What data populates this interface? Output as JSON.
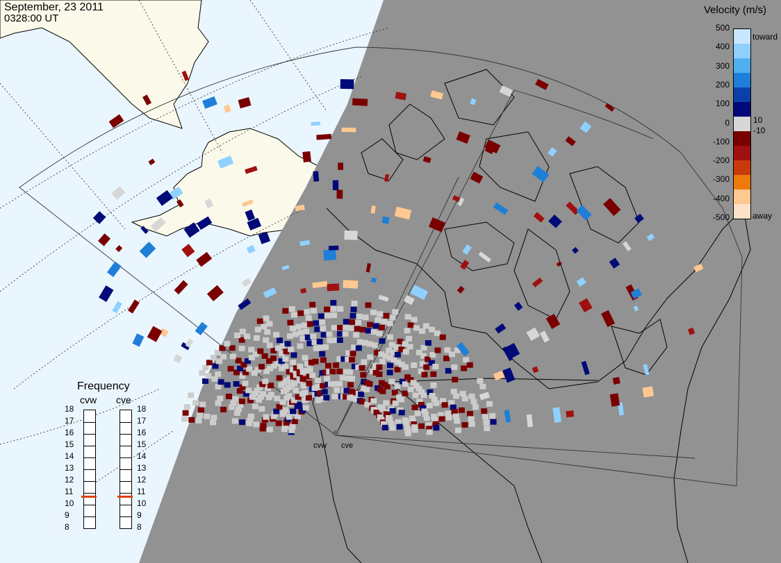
{
  "header": {
    "date": "September, 23 2011",
    "time": "0328:00 UT"
  },
  "colorbar": {
    "title": "Velocity (m/s)",
    "ticks": [
      "500",
      "400",
      "300",
      "200",
      "100",
      "0",
      "-100",
      "-200",
      "-300",
      "-400",
      "-500"
    ],
    "inner_labels": [
      "10",
      "-10"
    ],
    "toward_label": "toward",
    "away_label": "away",
    "colors": [
      "#c8e6ff",
      "#8fd0ff",
      "#4fb0f0",
      "#1f7fd8",
      "#0a40a8",
      "#000a78",
      "#d7d7d7",
      "#7a0000",
      "#a01010",
      "#c83a0a",
      "#ee7a0c",
      "#ffc890",
      "#ffe2c8"
    ]
  },
  "frequency": {
    "title": "Frequency",
    "radars": [
      {
        "name": "cvw",
        "value_mhz": 10.6
      },
      {
        "name": "cve",
        "value_mhz": 10.6
      }
    ],
    "ticks": [
      "18",
      "17",
      "16",
      "15",
      "14",
      "13",
      "12",
      "11",
      "10",
      "9",
      "8"
    ],
    "marker_color": "#e04010"
  },
  "sites": [
    {
      "name": "cvw"
    },
    {
      "name": "cve"
    }
  ],
  "map_colors": {
    "night": "#929292",
    "day_ocean": "#eaf6fe",
    "day_land": "#fbf9ea",
    "ground_scatter": "#cccccc"
  }
}
